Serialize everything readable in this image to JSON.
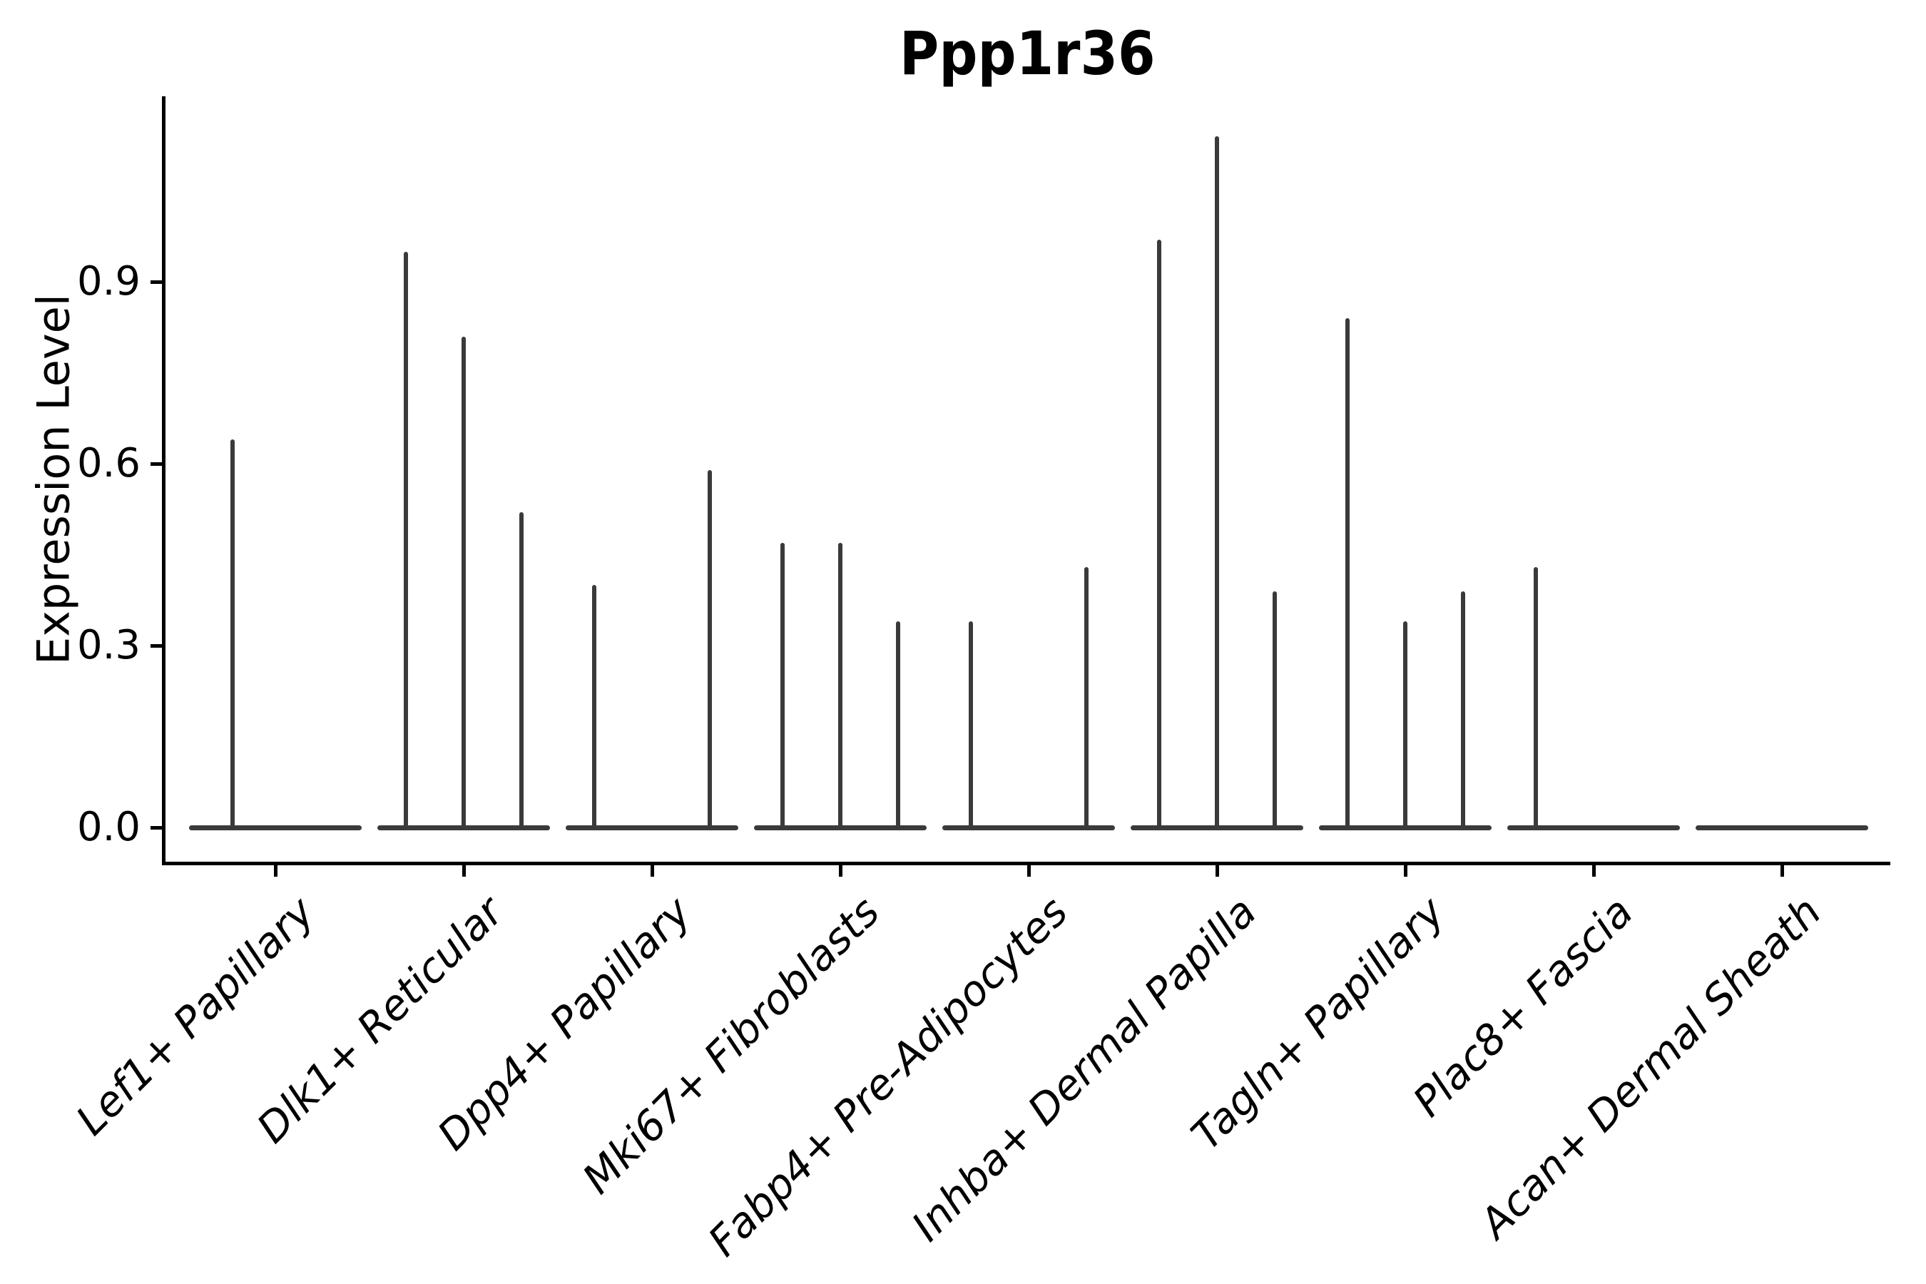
{
  "figure": {
    "title": "Ppp1r36",
    "background_color": "#ffffff",
    "axis_color": "#000000",
    "violin_line_color": "#3a3a3a"
  },
  "chart_data": {
    "type": "violin",
    "title": "Ppp1r36",
    "xlabel": "",
    "ylabel": "Expression Level",
    "ytick_values": [
      0.0,
      0.3,
      0.6,
      0.9
    ],
    "ytick_labels": [
      "0.0",
      "0.3",
      "0.6",
      "0.9"
    ],
    "ylim": [
      -0.06,
      1.2
    ],
    "grid": false,
    "legend": "none",
    "x_tick_label_style": "italic, rotated 45 degrees",
    "categories": [
      "Lef1+ Papillary",
      "Dlk1+ Reticular",
      "Dpp4+ Papillary",
      "Mki67+ Fibroblasts",
      "Fabp4+ Pre-Adipocytes",
      "Inhba+ Dermal Papilla",
      "Tagln+ Papillary",
      "Plac8+ Fascia",
      "Acan+ Dermal Sheath"
    ],
    "groups": [
      {
        "category": "Lef1+ Papillary",
        "violin_peaks": [
          0.64,
          0
        ]
      },
      {
        "category": "Dlk1+ Reticular",
        "violin_peaks": [
          0.95,
          0.81,
          0.52
        ]
      },
      {
        "category": "Dpp4+ Papillary",
        "violin_peaks": [
          0.4,
          0,
          0.59
        ]
      },
      {
        "category": "Mki67+ Fibroblasts",
        "violin_peaks": [
          0.47,
          0.47,
          0.34
        ]
      },
      {
        "category": "Fabp4+ Pre-Adipocytes",
        "violin_peaks": [
          0.34,
          0,
          0.43
        ]
      },
      {
        "category": "Inhba+ Dermal Papilla",
        "violin_peaks": [
          0.97,
          1.14,
          0.39
        ]
      },
      {
        "category": "Tagln+ Papillary",
        "violin_peaks": [
          0.84,
          0.34,
          0.39
        ]
      },
      {
        "category": "Plac8+ Fascia",
        "violin_peaks": [
          0.43,
          0,
          0
        ]
      },
      {
        "category": "Acan+ Dermal Sheath",
        "violin_peaks": [
          0,
          0,
          0
        ]
      }
    ]
  }
}
